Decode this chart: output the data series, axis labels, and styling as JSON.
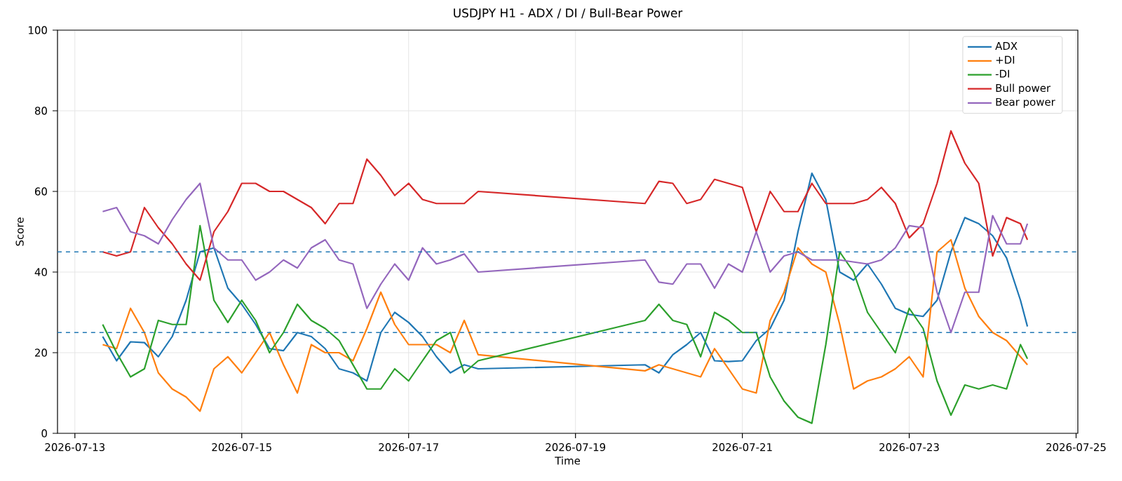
{
  "chart_data": {
    "type": "line",
    "title": "USDJPY H1 - ADX / DI / Bull-Bear Power",
    "xlabel": "Time",
    "ylabel": "Score",
    "x": [
      "2026-07-13T08:00",
      "2026-07-13T12:00",
      "2026-07-13T16:00",
      "2026-07-13T20:00",
      "2026-07-14T00:00",
      "2026-07-14T04:00",
      "2026-07-14T08:00",
      "2026-07-14T12:00",
      "2026-07-14T16:00",
      "2026-07-14T20:00",
      "2026-07-15T00:00",
      "2026-07-15T04:00",
      "2026-07-15T08:00",
      "2026-07-15T12:00",
      "2026-07-15T16:00",
      "2026-07-15T20:00",
      "2026-07-16T00:00",
      "2026-07-16T04:00",
      "2026-07-16T08:00",
      "2026-07-16T12:00",
      "2026-07-16T16:00",
      "2026-07-16T20:00",
      "2026-07-17T00:00",
      "2026-07-17T04:00",
      "2026-07-17T08:00",
      "2026-07-17T12:00",
      "2026-07-17T16:00",
      "2026-07-17T20:00",
      "2026-07-19T20:00",
      "2026-07-20T00:00",
      "2026-07-20T04:00",
      "2026-07-20T08:00",
      "2026-07-20T12:00",
      "2026-07-20T16:00",
      "2026-07-20T20:00",
      "2026-07-21T00:00",
      "2026-07-21T04:00",
      "2026-07-21T08:00",
      "2026-07-21T12:00",
      "2026-07-21T16:00",
      "2026-07-21T20:00",
      "2026-07-22T00:00",
      "2026-07-22T04:00",
      "2026-07-22T08:00",
      "2026-07-22T12:00",
      "2026-07-22T16:00",
      "2026-07-22T20:00",
      "2026-07-23T00:00",
      "2026-07-23T04:00",
      "2026-07-23T08:00",
      "2026-07-23T12:00",
      "2026-07-23T16:00",
      "2026-07-23T20:00",
      "2026-07-24T00:00",
      "2026-07-24T04:00",
      "2026-07-24T08:00",
      "2026-07-24T10:00"
    ],
    "series": [
      {
        "name": "ADX",
        "color": "#1f77b4",
        "values": [
          24,
          18,
          22.7,
          22.5,
          19,
          24,
          33,
          45,
          46,
          36,
          32,
          27,
          21,
          20.5,
          25,
          24,
          21,
          16,
          15,
          13,
          25,
          30,
          27.5,
          24,
          19,
          15,
          17,
          16,
          17,
          15,
          19.5,
          22,
          25,
          18,
          17.8,
          18,
          23,
          26,
          33,
          50,
          64.5,
          58,
          40,
          38,
          42,
          37,
          31,
          29.5,
          29,
          33,
          45,
          53.5,
          52,
          49,
          43.5,
          33,
          26.5
        ]
      },
      {
        "name": "+DI",
        "color": "#ff7f0e",
        "values": [
          22,
          21,
          31,
          25,
          15,
          11,
          9,
          5.5,
          16,
          19,
          15,
          20,
          25,
          17,
          10,
          22,
          20,
          20,
          18,
          26,
          35,
          27,
          22,
          22,
          22,
          20,
          28,
          19.5,
          15.5,
          17,
          16,
          15,
          14,
          21,
          16,
          11,
          10,
          28,
          35,
          46,
          42,
          40,
          27,
          11,
          13,
          14,
          16,
          19,
          14,
          45,
          48,
          36,
          29,
          25,
          23,
          19,
          17
        ]
      },
      {
        "name": "-DI",
        "color": "#2ca02c",
        "values": [
          27,
          20,
          14,
          16,
          28,
          27,
          27,
          51.5,
          33,
          27.5,
          33,
          28,
          20,
          25,
          32,
          28,
          26,
          23,
          17,
          11,
          11,
          16,
          13,
          18,
          23,
          25,
          15,
          18,
          28,
          32,
          28,
          27,
          19,
          30,
          28,
          25,
          25,
          14,
          8,
          4,
          2.5,
          22,
          45,
          40,
          30,
          25,
          20,
          31,
          26,
          13,
          4.5,
          12,
          11,
          12,
          11,
          22,
          18.5
        ]
      },
      {
        "name": "Bull power",
        "color": "#d62728",
        "values": [
          45,
          44,
          45,
          56,
          51,
          47,
          42,
          38,
          50,
          55,
          62,
          62,
          60,
          60,
          58,
          56,
          52,
          57,
          57,
          68,
          64,
          59,
          62,
          58,
          57,
          57,
          57,
          60,
          57,
          62.5,
          62,
          57,
          58,
          63,
          62,
          61,
          50,
          60,
          55,
          55,
          62,
          57,
          57,
          57,
          58,
          61,
          57,
          48.5,
          52,
          62,
          75,
          67,
          62,
          44,
          53.5,
          52,
          48
        ]
      },
      {
        "name": "Bear power",
        "color": "#9467bd",
        "values": [
          55,
          56,
          50,
          49,
          47,
          53,
          58,
          62,
          46,
          43,
          43,
          38,
          40,
          43,
          41,
          46,
          48,
          43,
          42,
          31,
          37,
          42,
          38,
          46,
          42,
          43,
          44.5,
          40,
          43,
          37.5,
          37,
          42,
          42,
          36,
          42,
          40,
          50,
          40,
          44,
          45,
          43,
          43,
          43,
          42.5,
          42,
          43,
          46,
          51.5,
          51,
          35,
          25,
          35,
          35,
          54,
          47,
          47,
          52
        ]
      }
    ],
    "xlim": [
      "2026-07-12T19:00",
      "2026-07-25T00:30"
    ],
    "xticks": [
      "2026-07-13",
      "2026-07-15",
      "2026-07-17",
      "2026-07-19",
      "2026-07-21",
      "2026-07-23",
      "2026-07-25"
    ],
    "ylim": [
      0,
      100
    ],
    "yticks": [
      0,
      20,
      40,
      60,
      80,
      100
    ],
    "ref_lines": [
      {
        "axis": "y",
        "value": 45,
        "color": "#1f77b4",
        "line_style": "dashed"
      },
      {
        "axis": "y",
        "value": 25,
        "color": "#1f77b4",
        "line_style": "dashed"
      }
    ],
    "grid": true,
    "legend": "top right",
    "line_style": "solid"
  }
}
